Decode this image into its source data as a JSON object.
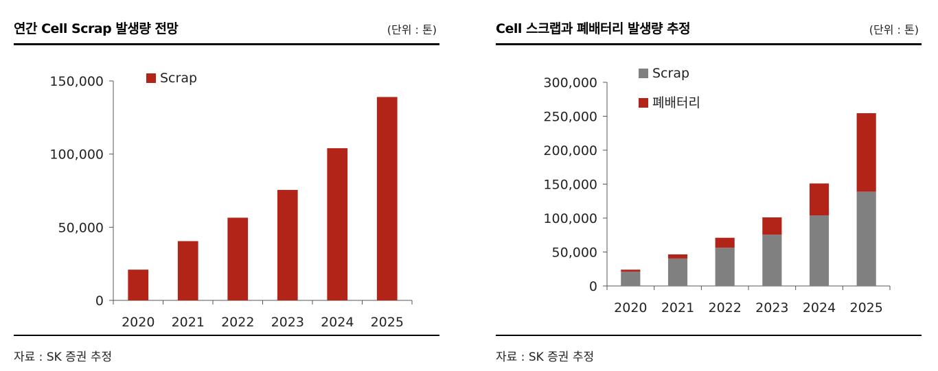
{
  "left": {
    "title": "연간 Cell Scrap 발생량 전망",
    "unit": "(단위 : 톤)",
    "source": "자료 : SK 증권 추정"
  },
  "right": {
    "title": "Cell 스크랩과 폐배터리 발생량 추정",
    "unit": "(단위 : 톤)",
    "source": "자료 : SK 증권 추정"
  },
  "colors": {
    "scrap_red": "#b22418",
    "scrap_gray": "#808080",
    "waste_battery": "#b22418"
  },
  "chart_data": [
    {
      "type": "bar",
      "title": "연간 Cell Scrap 발생량 전망",
      "categories": [
        "2020",
        "2021",
        "2022",
        "2023",
        "2024",
        "2025"
      ],
      "series": [
        {
          "name": "Scrap",
          "values": [
            21000,
            40500,
            56500,
            75500,
            104000,
            139000
          ]
        }
      ],
      "ylim": [
        0,
        150000
      ],
      "yticks": [
        0,
        50000,
        100000,
        150000
      ],
      "ytick_labels": [
        "0",
        "50,000",
        "100,000",
        "150,000"
      ],
      "legend": "top-left",
      "grid": false
    },
    {
      "type": "bar",
      "stacked": true,
      "title": "Cell 스크랩과 폐배터리 발생량 추정",
      "categories": [
        "2020",
        "2021",
        "2022",
        "2023",
        "2024",
        "2025"
      ],
      "series": [
        {
          "name": "Scrap",
          "values": [
            21000,
            40500,
            56500,
            75500,
            104000,
            139000
          ]
        },
        {
          "name": "폐배터리",
          "values": [
            3000,
            6000,
            14500,
            25500,
            47000,
            115500
          ]
        }
      ],
      "ylim": [
        0,
        300000
      ],
      "yticks": [
        0,
        50000,
        100000,
        150000,
        200000,
        250000,
        300000
      ],
      "ytick_labels": [
        "0",
        "50,000",
        "100,000",
        "150,000",
        "200,000",
        "250,000",
        "300,000"
      ],
      "legend": "top-left",
      "grid": false
    }
  ]
}
